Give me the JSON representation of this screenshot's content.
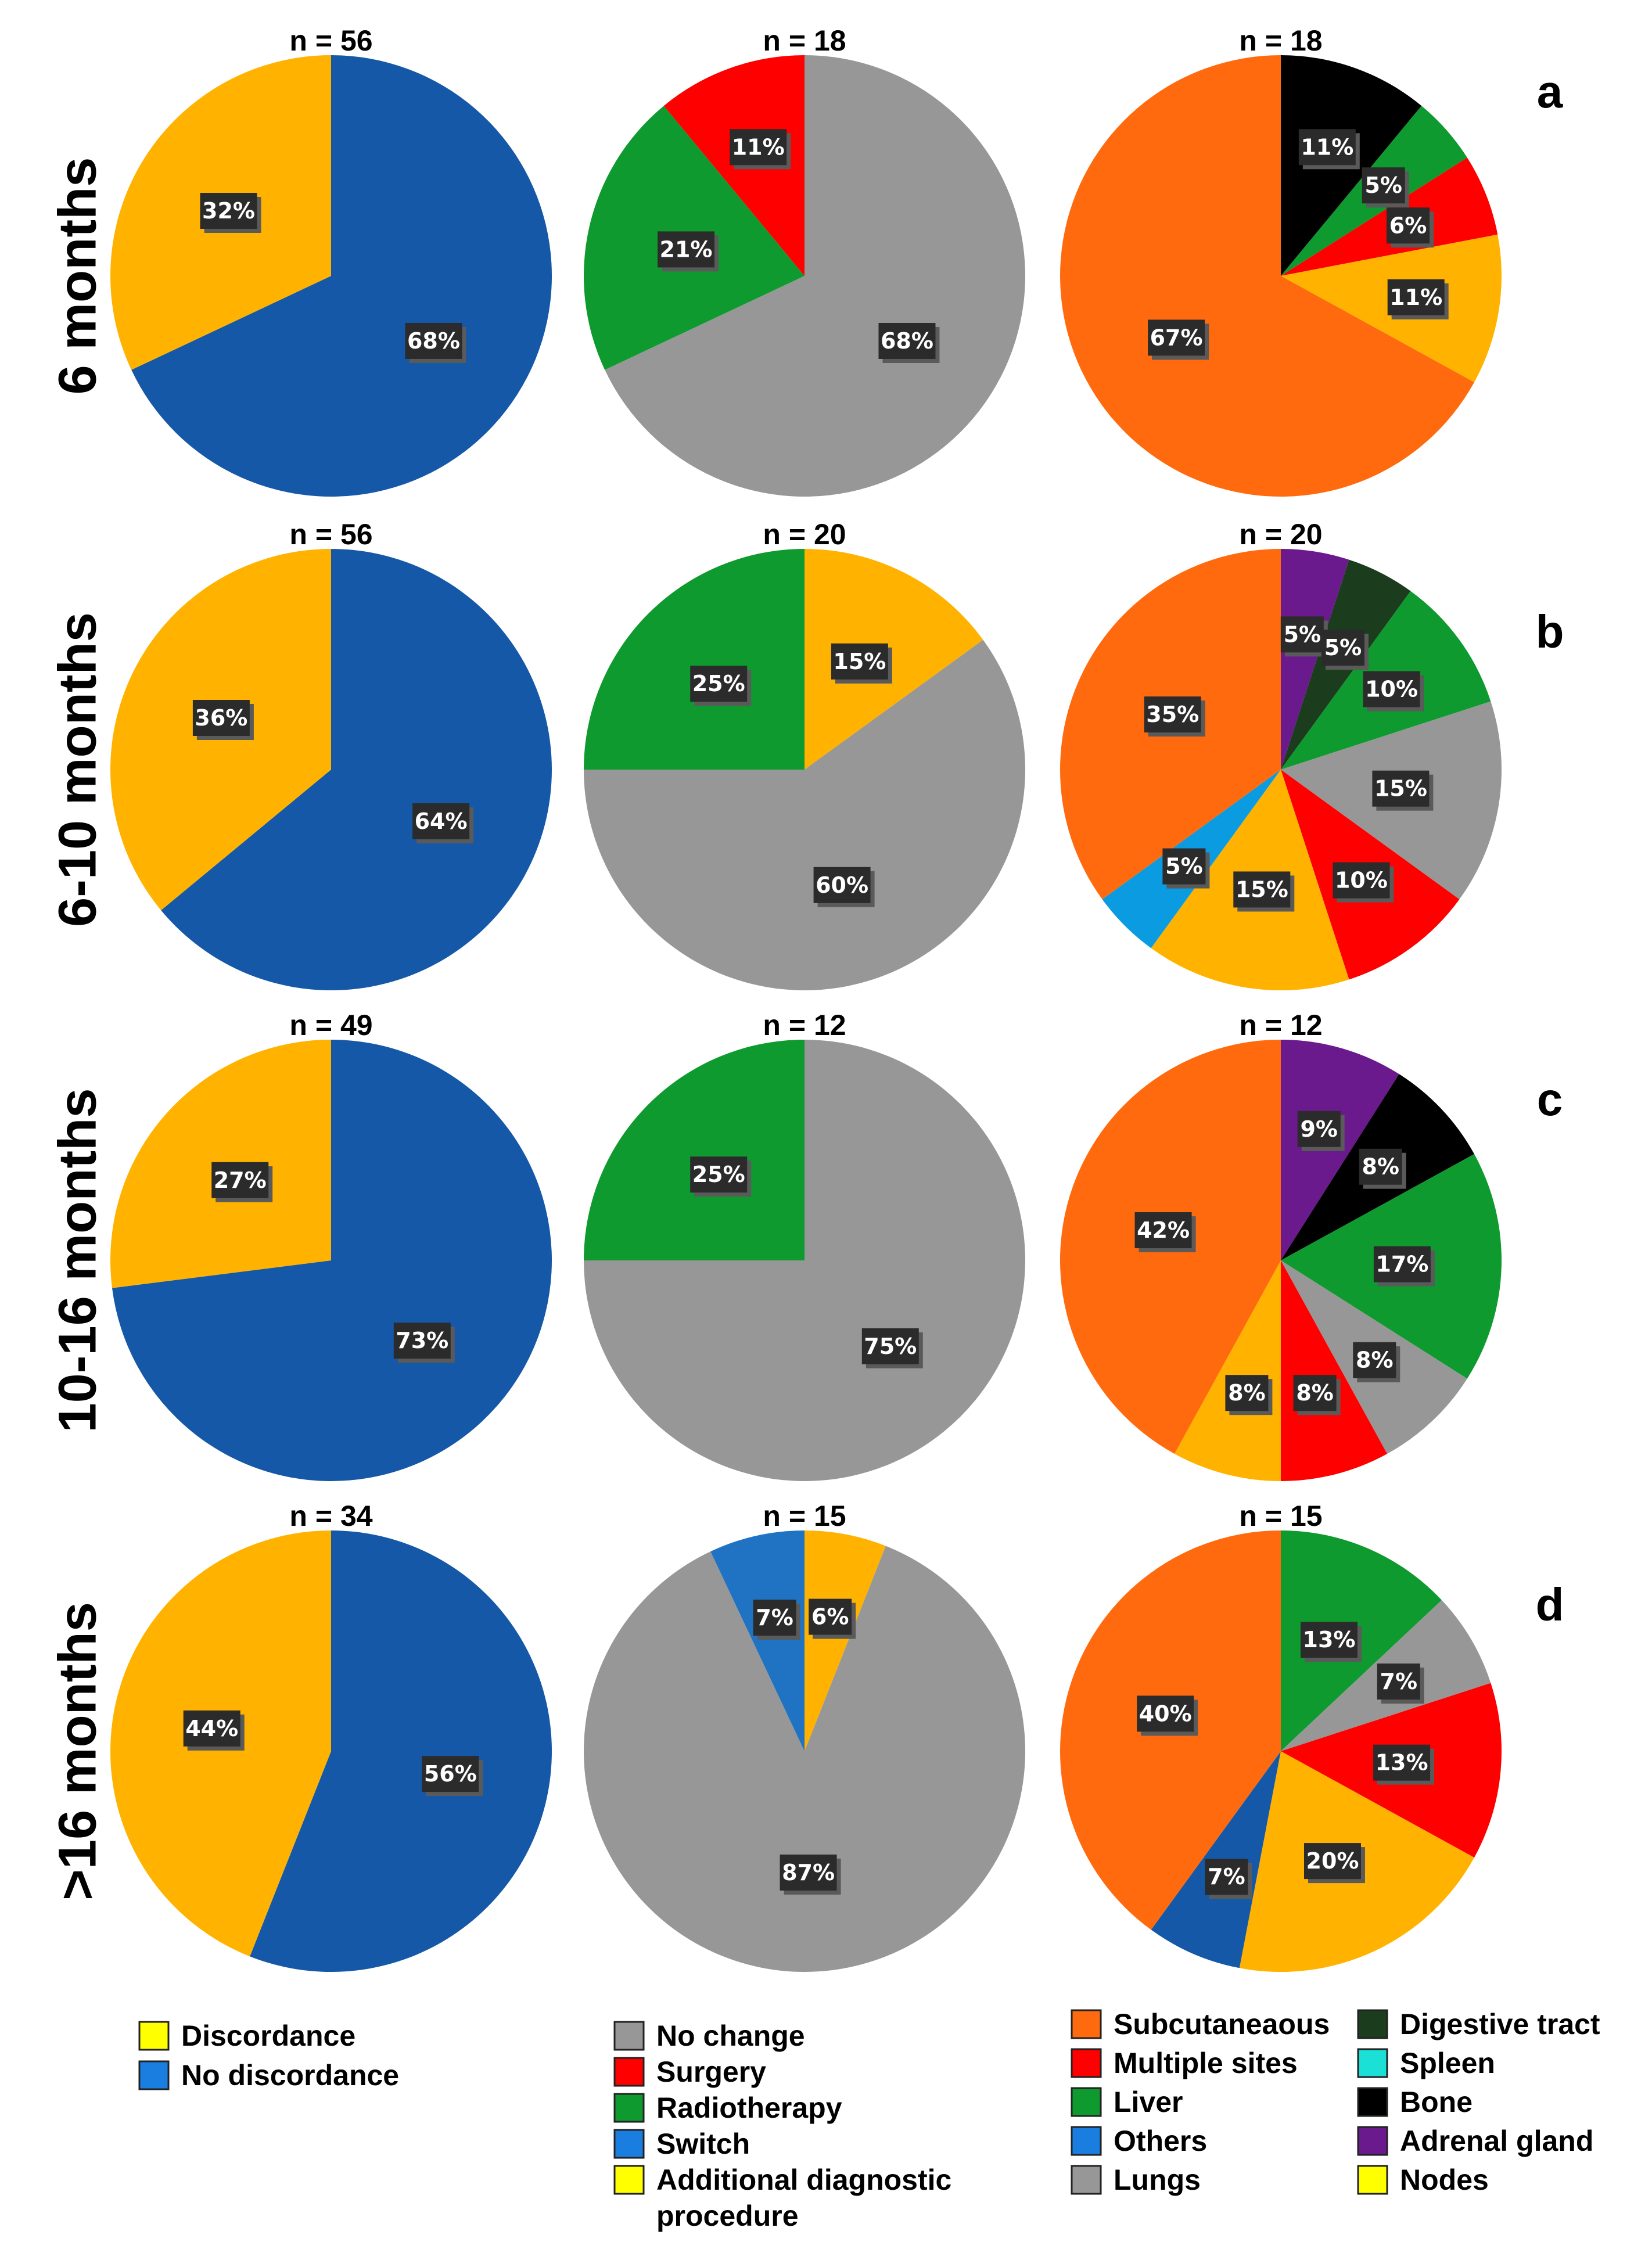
{
  "chart_data": {
    "type": "pie",
    "panel_letters": [
      "a",
      "b",
      "c",
      "d"
    ],
    "row_labels": [
      "6 months",
      "6-10 months",
      "10-16 months",
      ">16 months"
    ],
    "rows": [
      {
        "panel": "a",
        "label": "6 months",
        "pies": [
          {
            "n_label": "n = 56",
            "slices": [
              {
                "category": "No discordance",
                "value": 68,
                "label": "68%",
                "color": "#1558A7"
              },
              {
                "category": "Discordance",
                "value": 32,
                "label": "32%",
                "color": "#FFB300"
              }
            ]
          },
          {
            "n_label": "n = 18",
            "slices": [
              {
                "category": "No change",
                "value": 68,
                "label": "68%",
                "color": "#979797"
              },
              {
                "category": "Radiotherapy",
                "value": 21,
                "label": "21%",
                "color": "#0E9A2E"
              },
              {
                "category": "Surgery",
                "value": 11,
                "label": "11%",
                "color": "#FF0000"
              }
            ]
          },
          {
            "n_label": "n = 18",
            "slices": [
              {
                "category": "Bone",
                "value": 11,
                "label": "11%",
                "color": "#000000"
              },
              {
                "category": "Liver",
                "value": 5,
                "label": "5%",
                "color": "#0E9A2E"
              },
              {
                "category": "Multiple sites",
                "value": 6,
                "label": "6%",
                "color": "#FF0000"
              },
              {
                "category": "Nodes",
                "value": 11,
                "label": "11%",
                "color": "#FFB300"
              },
              {
                "category": "Subcutaneaous",
                "value": 67,
                "label": "67%",
                "color": "#FF6A0E"
              }
            ]
          }
        ]
      },
      {
        "panel": "b",
        "label": "6-10 months",
        "pies": [
          {
            "n_label": "n = 56",
            "slices": [
              {
                "category": "No discordance",
                "value": 64,
                "label": "64%",
                "color": "#1558A7"
              },
              {
                "category": "Discordance",
                "value": 36,
                "label": "36%",
                "color": "#FFB300"
              }
            ]
          },
          {
            "n_label": "n = 20",
            "slices": [
              {
                "category": "Additional diagnostic procedure",
                "value": 15,
                "label": "15%",
                "color": "#FFB300"
              },
              {
                "category": "No change",
                "value": 60,
                "label": "60%",
                "color": "#979797"
              },
              {
                "category": "Radiotherapy",
                "value": 25,
                "label": "25%",
                "color": "#0E9A2E"
              }
            ]
          },
          {
            "n_label": "n = 20",
            "slices": [
              {
                "category": "Adrenal gland",
                "value": 5,
                "label": "5%",
                "color": "#6A1A8C"
              },
              {
                "category": "Digestive tract",
                "value": 5,
                "label": "5%",
                "color": "#1B3D1D"
              },
              {
                "category": "Liver",
                "value": 10,
                "label": "10%",
                "color": "#0E9A2E"
              },
              {
                "category": "Lungs",
                "value": 15,
                "label": "15%",
                "color": "#979797"
              },
              {
                "category": "Multiple sites",
                "value": 10,
                "label": "10%",
                "color": "#FF0000"
              },
              {
                "category": "Nodes",
                "value": 15,
                "label": "15%",
                "color": "#FFB300"
              },
              {
                "category": "Others",
                "value": 5,
                "label": "5%",
                "color": "#0B9BE0"
              },
              {
                "category": "Subcutaneaous",
                "value": 35,
                "label": "35%",
                "color": "#FF6A0E"
              }
            ]
          }
        ]
      },
      {
        "panel": "c",
        "label": "10-16 months",
        "pies": [
          {
            "n_label": "n = 49",
            "slices": [
              {
                "category": "No discordance",
                "value": 73,
                "label": "73%",
                "color": "#1558A7"
              },
              {
                "category": "Discordance",
                "value": 27,
                "label": "27%",
                "color": "#FFB300"
              }
            ]
          },
          {
            "n_label": "n = 12",
            "slices": [
              {
                "category": "No change",
                "value": 75,
                "label": "75%",
                "color": "#979797"
              },
              {
                "category": "Radiotherapy",
                "value": 25,
                "label": "25%",
                "color": "#0E9A2E"
              }
            ]
          },
          {
            "n_label": "n = 12",
            "slices": [
              {
                "category": "Adrenal gland",
                "value": 9,
                "label": "9%",
                "color": "#6A1A8C"
              },
              {
                "category": "Bone",
                "value": 8,
                "label": "8%",
                "color": "#000000"
              },
              {
                "category": "Liver",
                "value": 17,
                "label": "17%",
                "color": "#0E9A2E"
              },
              {
                "category": "Lungs",
                "value": 8,
                "label": "8%",
                "color": "#979797"
              },
              {
                "category": "Multiple sites",
                "value": 8,
                "label": "8%",
                "color": "#FF0000"
              },
              {
                "category": "Nodes",
                "value": 8,
                "label": "8%",
                "color": "#FFB300"
              },
              {
                "category": "Subcutaneaous",
                "value": 42,
                "label": "42%",
                "color": "#FF6A0E"
              }
            ]
          }
        ]
      },
      {
        "panel": "d",
        "label": ">16 months",
        "pies": [
          {
            "n_label": "n = 34",
            "slices": [
              {
                "category": "No discordance",
                "value": 56,
                "label": "56%",
                "color": "#1558A7"
              },
              {
                "category": "Discordance",
                "value": 44,
                "label": "44%",
                "color": "#FFB300"
              }
            ]
          },
          {
            "n_label": "n = 15",
            "slices": [
              {
                "category": "Additional diagnostic procedure",
                "value": 6,
                "label": "6%",
                "color": "#FFB300"
              },
              {
                "category": "No change",
                "value": 87,
                "label": "87%",
                "color": "#979797"
              },
              {
                "category": "Switch",
                "value": 7,
                "label": "7%",
                "color": "#1F73C2"
              }
            ]
          },
          {
            "n_label": "n = 15",
            "slices": [
              {
                "category": "Liver",
                "value": 13,
                "label": "13%",
                "color": "#0E9A2E"
              },
              {
                "category": "Lungs",
                "value": 7,
                "label": "7%",
                "color": "#979797"
              },
              {
                "category": "Multiple sites",
                "value": 13,
                "label": "13%",
                "color": "#FF0000"
              },
              {
                "category": "Nodes",
                "value": 20,
                "label": "20%",
                "color": "#FFB300"
              },
              {
                "category": "Others",
                "value": 7,
                "label": "7%",
                "color": "#1558A7"
              },
              {
                "category": "Subcutaneaous",
                "value": 40,
                "label": "40%",
                "color": "#FF6A0E"
              }
            ]
          }
        ]
      }
    ],
    "legends": [
      {
        "items": [
          {
            "label": "Discordance",
            "color": "#FFFF00"
          },
          {
            "label": "No discordance",
            "color": "#1A7DE0"
          }
        ]
      },
      {
        "items": [
          {
            "label": "No change",
            "color": "#979797"
          },
          {
            "label": "Surgery",
            "color": "#FF0000"
          },
          {
            "label": "Radiotherapy",
            "color": "#0E9A2E"
          },
          {
            "label": "Switch",
            "color": "#1A7DE0"
          },
          {
            "label": "Additional diagnostic",
            "label_line2": "procedure",
            "color": "#FFFF00"
          }
        ]
      },
      {
        "items": [
          {
            "label": "Subcutaneaous",
            "color": "#FF6A0E"
          },
          {
            "label": "Multiple sites",
            "color": "#FF0000"
          },
          {
            "label": "Liver",
            "color": "#0E9A2E"
          },
          {
            "label": "Others",
            "color": "#1A7DE0"
          },
          {
            "label": "Lungs",
            "color": "#979797"
          }
        ]
      },
      {
        "items": [
          {
            "label": "Digestive tract",
            "color": "#1B3D1D"
          },
          {
            "label": "Spleen",
            "color": "#1BE0D6"
          },
          {
            "label": "Bone",
            "color": "#000000"
          },
          {
            "label": "Adrenal gland",
            "color": "#6A1A8C"
          },
          {
            "label": "Nodes",
            "color": "#FFFF00"
          }
        ]
      }
    ]
  }
}
